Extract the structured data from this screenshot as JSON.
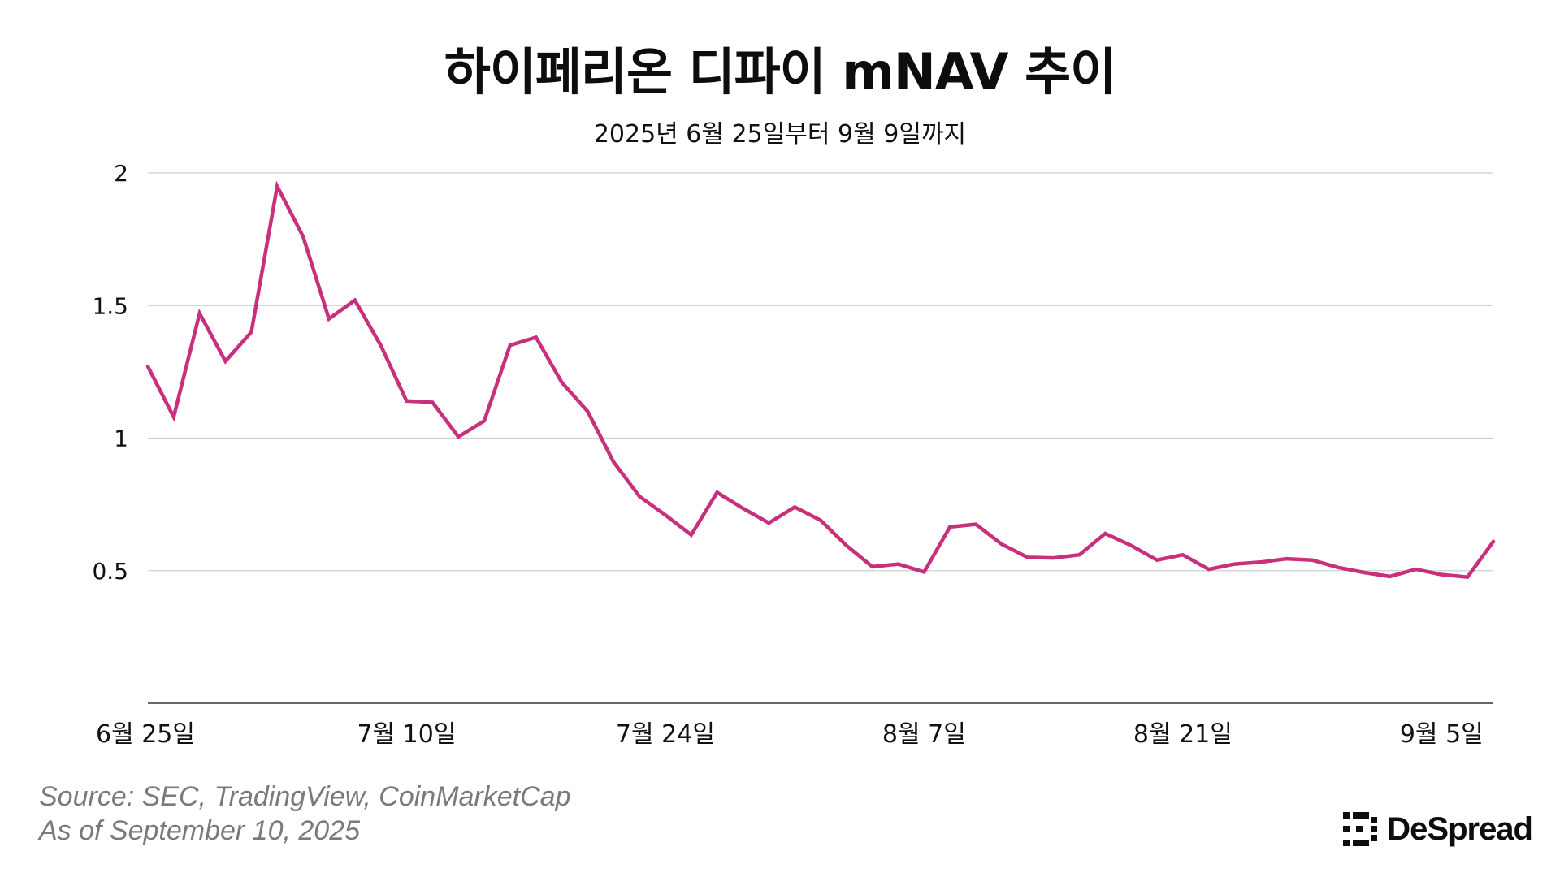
{
  "header": {
    "title": "하이페리온 디파이 mNAV 추이",
    "subtitle": "2025년 6월 25일부터 9월 9일까지"
  },
  "chart_data": {
    "type": "line",
    "title": "하이페리온 디파이 mNAV 추이",
    "subtitle": "2025년 6월 25일부터 9월 9일까지",
    "xlabel": "",
    "ylabel": "",
    "x_tick_labels": [
      "6월 25일",
      "7월 10일",
      "7월 24일",
      "8월 7일",
      "8월 21일",
      "9월 5일"
    ],
    "y_tick_labels": [
      "2",
      "1.5",
      "1",
      "0.5"
    ],
    "y_ticks": [
      2,
      1.5,
      1,
      0.5
    ],
    "ylim": [
      0,
      2
    ],
    "grid": true,
    "legend": "none",
    "line_color": "#c8307c",
    "series": [
      {
        "values": [
          1.27,
          1.08,
          1.47,
          1.29,
          1.4,
          1.95,
          1.76,
          1.45,
          1.52,
          1.35,
          1.14,
          1.135,
          1.005,
          1.065,
          1.35,
          1.38,
          1.21,
          1.1,
          0.91,
          0.78,
          0.71,
          0.635,
          0.795,
          0.735,
          0.68,
          0.74,
          0.69,
          0.595,
          0.515,
          0.525,
          0.495,
          0.665,
          0.675,
          0.6,
          0.55,
          0.548,
          0.56,
          0.64,
          0.595,
          0.54,
          0.56,
          0.505,
          0.525,
          0.532,
          0.545,
          0.54,
          0.512,
          0.493,
          0.478,
          0.505,
          0.485,
          0.476,
          0.61
        ]
      }
    ]
  },
  "footer": {
    "source": "Source: SEC, TradingView, CoinMarketCap",
    "as_of": "As of September 10, 2025"
  },
  "brand": {
    "name": "DeSpread",
    "logo_icon": "despread-logo-icon"
  }
}
